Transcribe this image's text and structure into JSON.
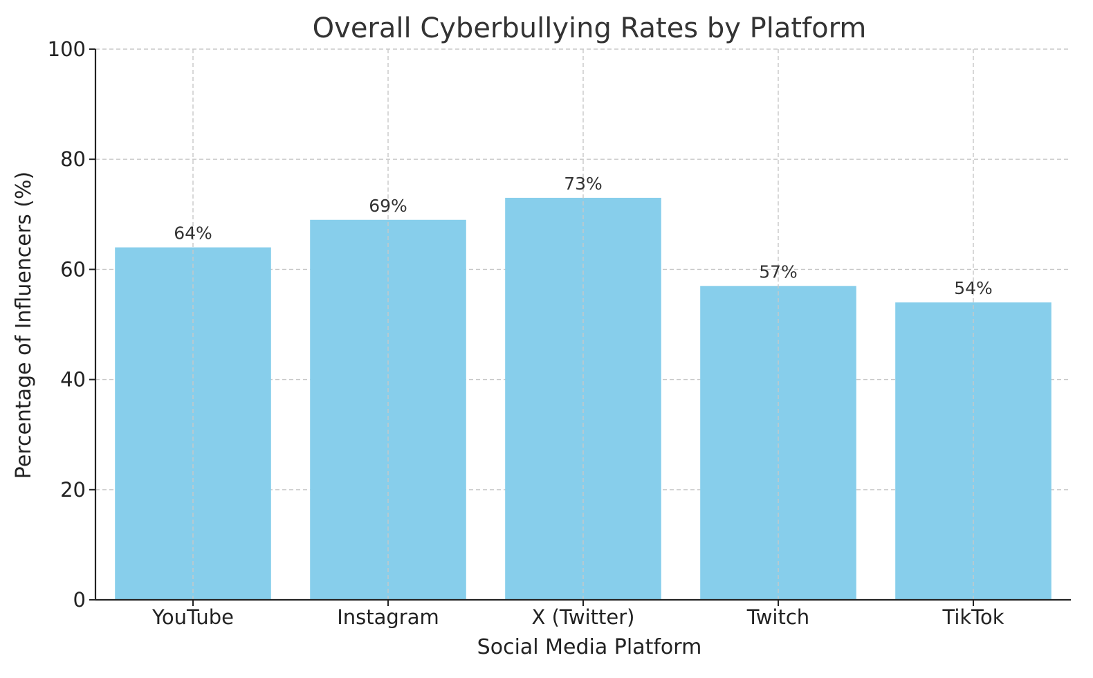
{
  "chart_data": {
    "type": "bar",
    "title": "Overall Cyberbullying Rates by Platform",
    "xlabel": "Social Media Platform",
    "ylabel": "Percentage of Influencers (%)",
    "categories": [
      "YouTube",
      "Instagram",
      "X (Twitter)",
      "Twitch",
      "TikTok"
    ],
    "values": [
      64,
      69,
      73,
      57,
      54
    ],
    "data_labels": [
      "64%",
      "69%",
      "73%",
      "57%",
      "54%"
    ],
    "yticks": [
      0,
      20,
      40,
      60,
      80,
      100
    ],
    "ylim": [
      0,
      100
    ],
    "grid": true,
    "legend": "none",
    "colors": {
      "bar": "#87ceeb",
      "axis": "#222222",
      "grid": "#c8c8c8",
      "text": "#222222"
    }
  }
}
